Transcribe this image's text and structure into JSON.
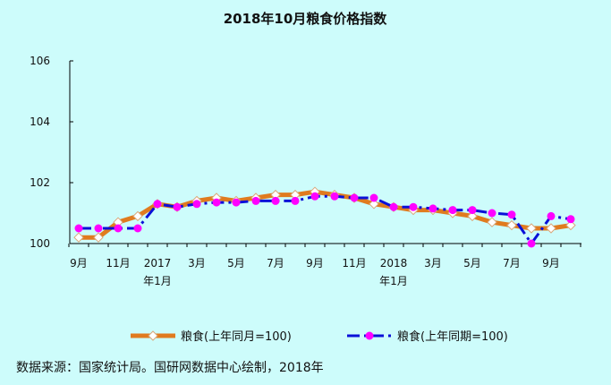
{
  "chart_data": {
    "type": "line",
    "title": "2018年10月粮食价格指数",
    "ylim": [
      100,
      106
    ],
    "yticks": [
      "100",
      "102",
      "104",
      "106"
    ],
    "categories": [
      "2016-09",
      "2016-10",
      "2016-11",
      "2016-12",
      "2017-01",
      "2017-02",
      "2017-03",
      "2017-04",
      "2017-05",
      "2017-06",
      "2017-07",
      "2017-08",
      "2017-09",
      "2017-10",
      "2017-11",
      "2017-12",
      "2018-01",
      "2018-02",
      "2018-03",
      "2018-04",
      "2018-05",
      "2018-06",
      "2018-07",
      "2018-08",
      "2018-09",
      "2018-10"
    ],
    "xtick_labels": [
      {
        "index": 0,
        "line1": "9月",
        "line2": ""
      },
      {
        "index": 2,
        "line1": "11月",
        "line2": ""
      },
      {
        "index": 4,
        "line1": "2017",
        "line2": "年1月"
      },
      {
        "index": 6,
        "line1": "3月",
        "line2": ""
      },
      {
        "index": 8,
        "line1": "5月",
        "line2": ""
      },
      {
        "index": 10,
        "line1": "7月",
        "line2": ""
      },
      {
        "index": 12,
        "line1": "9月",
        "line2": ""
      },
      {
        "index": 14,
        "line1": "11月",
        "line2": ""
      },
      {
        "index": 16,
        "line1": "2018",
        "line2": "年1月"
      },
      {
        "index": 18,
        "line1": "3月",
        "line2": ""
      },
      {
        "index": 20,
        "line1": "5月",
        "line2": ""
      },
      {
        "index": 22,
        "line1": "7月",
        "line2": ""
      },
      {
        "index": 24,
        "line1": "9月",
        "line2": ""
      }
    ],
    "series": [
      {
        "name": "粮食(上年同月=100)",
        "color": "#e07b1f",
        "marker": "diamond-white",
        "values": [
          100.2,
          100.2,
          100.7,
          100.9,
          101.3,
          101.2,
          101.4,
          101.5,
          101.4,
          101.5,
          101.6,
          101.6,
          101.7,
          101.6,
          101.5,
          101.3,
          101.2,
          101.1,
          101.1,
          101.0,
          100.9,
          100.7,
          100.6,
          100.5,
          100.5,
          100.6
        ]
      },
      {
        "name": "粮食(上年同期=100)",
        "color": "#0a10d8",
        "marker": "circle-magenta",
        "values": [
          100.5,
          100.5,
          100.5,
          100.5,
          101.3,
          101.2,
          101.3,
          101.35,
          101.35,
          101.4,
          101.4,
          101.4,
          101.55,
          101.55,
          101.5,
          101.5,
          101.2,
          101.2,
          101.15,
          101.1,
          101.1,
          101.0,
          100.95,
          100.0,
          100.9,
          100.8
        ]
      }
    ],
    "grid": false,
    "legend_position": "bottom"
  },
  "footer": {
    "source": "数据来源：国家统计局。国研网数据中心绘制，2018年"
  }
}
